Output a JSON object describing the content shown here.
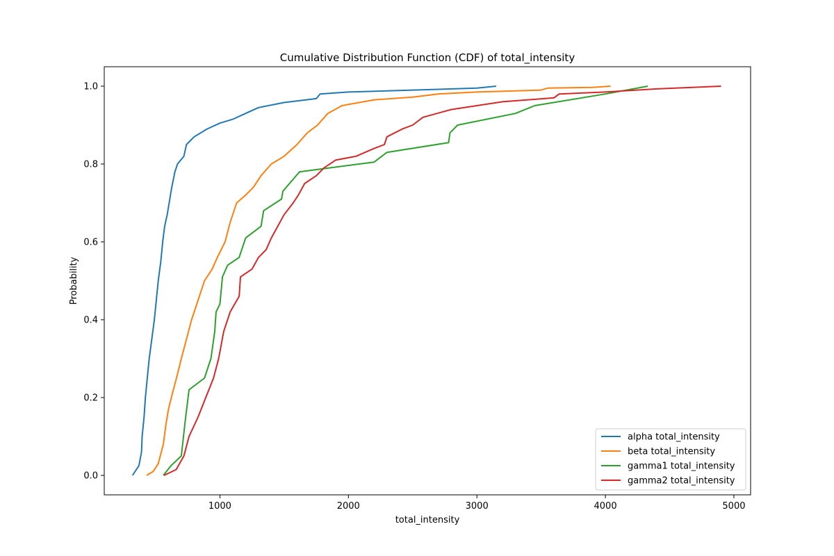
{
  "chart_data": {
    "type": "line",
    "title": "Cumulative Distribution Function (CDF) of total_intensity",
    "xlabel": "total_intensity",
    "ylabel": "Probability",
    "xlim": [
      100,
      5130
    ],
    "ylim": [
      -0.05,
      1.05
    ],
    "x_ticks": [
      1000,
      2000,
      3000,
      4000,
      5000
    ],
    "x_tick_labels": [
      "1000",
      "2000",
      "3000",
      "4000",
      "5000"
    ],
    "y_ticks": [
      0.0,
      0.2,
      0.4,
      0.6,
      0.8,
      1.0
    ],
    "y_tick_labels": [
      "0.0",
      "0.2",
      "0.4",
      "0.6",
      "0.8",
      "1.0"
    ],
    "grid": false,
    "legend_position": "lower-right",
    "series": [
      {
        "name": "alpha total_intensity",
        "color": "#1f77b4",
        "points": [
          [
            320,
            0.0
          ],
          [
            350,
            0.015
          ],
          [
            370,
            0.025
          ],
          [
            390,
            0.06
          ],
          [
            395,
            0.1
          ],
          [
            410,
            0.15
          ],
          [
            420,
            0.2
          ],
          [
            435,
            0.25
          ],
          [
            450,
            0.3
          ],
          [
            470,
            0.35
          ],
          [
            490,
            0.4
          ],
          [
            505,
            0.45
          ],
          [
            520,
            0.5
          ],
          [
            540,
            0.55
          ],
          [
            555,
            0.6
          ],
          [
            570,
            0.64
          ],
          [
            590,
            0.67
          ],
          [
            605,
            0.7
          ],
          [
            625,
            0.74
          ],
          [
            650,
            0.78
          ],
          [
            670,
            0.8
          ],
          [
            720,
            0.82
          ],
          [
            740,
            0.85
          ],
          [
            800,
            0.87
          ],
          [
            900,
            0.89
          ],
          [
            1000,
            0.905
          ],
          [
            1100,
            0.915
          ],
          [
            1200,
            0.93
          ],
          [
            1300,
            0.945
          ],
          [
            1500,
            0.958
          ],
          [
            1750,
            0.968
          ],
          [
            1780,
            0.98
          ],
          [
            2000,
            0.985
          ],
          [
            2500,
            0.99
          ],
          [
            3000,
            0.995
          ],
          [
            3150,
            1.0
          ]
        ]
      },
      {
        "name": "beta total_intensity",
        "color": "#ff7f0e",
        "points": [
          [
            430,
            0.0
          ],
          [
            480,
            0.01
          ],
          [
            520,
            0.03
          ],
          [
            560,
            0.08
          ],
          [
            580,
            0.13
          ],
          [
            600,
            0.17
          ],
          [
            630,
            0.21
          ],
          [
            670,
            0.26
          ],
          [
            700,
            0.3
          ],
          [
            740,
            0.35
          ],
          [
            780,
            0.4
          ],
          [
            830,
            0.45
          ],
          [
            880,
            0.5
          ],
          [
            940,
            0.53
          ],
          [
            980,
            0.56
          ],
          [
            1040,
            0.6
          ],
          [
            1080,
            0.65
          ],
          [
            1130,
            0.7
          ],
          [
            1200,
            0.72
          ],
          [
            1260,
            0.74
          ],
          [
            1320,
            0.77
          ],
          [
            1400,
            0.8
          ],
          [
            1500,
            0.82
          ],
          [
            1600,
            0.85
          ],
          [
            1680,
            0.88
          ],
          [
            1760,
            0.9
          ],
          [
            1840,
            0.93
          ],
          [
            1950,
            0.95
          ],
          [
            2200,
            0.965
          ],
          [
            2500,
            0.972
          ],
          [
            2700,
            0.98
          ],
          [
            3000,
            0.985
          ],
          [
            3500,
            0.99
          ],
          [
            3550,
            0.995
          ],
          [
            3900,
            0.997
          ],
          [
            4040,
            1.0
          ]
        ]
      },
      {
        "name": "gamma1 total_intensity",
        "color": "#2ca02c",
        "points": [
          [
            560,
            0.0
          ],
          [
            620,
            0.025
          ],
          [
            700,
            0.05
          ],
          [
            730,
            0.14
          ],
          [
            760,
            0.22
          ],
          [
            880,
            0.25
          ],
          [
            930,
            0.3
          ],
          [
            960,
            0.37
          ],
          [
            970,
            0.42
          ],
          [
            1000,
            0.44
          ],
          [
            1020,
            0.51
          ],
          [
            1060,
            0.54
          ],
          [
            1150,
            0.56
          ],
          [
            1200,
            0.61
          ],
          [
            1320,
            0.64
          ],
          [
            1340,
            0.68
          ],
          [
            1480,
            0.71
          ],
          [
            1490,
            0.73
          ],
          [
            1620,
            0.78
          ],
          [
            2200,
            0.805
          ],
          [
            2300,
            0.83
          ],
          [
            2780,
            0.855
          ],
          [
            2790,
            0.88
          ],
          [
            2850,
            0.9
          ],
          [
            3300,
            0.93
          ],
          [
            3450,
            0.95
          ],
          [
            4000,
            0.98
          ],
          [
            4330,
            1.0
          ]
        ]
      },
      {
        "name": "gamma2 total_intensity",
        "color": "#d62728",
        "points": [
          [
            565,
            0.0
          ],
          [
            660,
            0.015
          ],
          [
            720,
            0.05
          ],
          [
            760,
            0.1
          ],
          [
            830,
            0.15
          ],
          [
            890,
            0.2
          ],
          [
            950,
            0.25
          ],
          [
            990,
            0.3
          ],
          [
            1030,
            0.37
          ],
          [
            1080,
            0.42
          ],
          [
            1150,
            0.46
          ],
          [
            1160,
            0.51
          ],
          [
            1250,
            0.53
          ],
          [
            1300,
            0.56
          ],
          [
            1360,
            0.58
          ],
          [
            1400,
            0.61
          ],
          [
            1450,
            0.64
          ],
          [
            1500,
            0.67
          ],
          [
            1570,
            0.7
          ],
          [
            1610,
            0.72
          ],
          [
            1660,
            0.75
          ],
          [
            1750,
            0.77
          ],
          [
            1810,
            0.79
          ],
          [
            1900,
            0.81
          ],
          [
            2060,
            0.82
          ],
          [
            2200,
            0.84
          ],
          [
            2280,
            0.85
          ],
          [
            2300,
            0.87
          ],
          [
            2420,
            0.89
          ],
          [
            2500,
            0.9
          ],
          [
            2580,
            0.92
          ],
          [
            2800,
            0.94
          ],
          [
            3000,
            0.95
          ],
          [
            3200,
            0.96
          ],
          [
            3600,
            0.97
          ],
          [
            3640,
            0.98
          ],
          [
            4000,
            0.985
          ],
          [
            4400,
            0.993
          ],
          [
            4900,
            1.0
          ]
        ]
      }
    ]
  }
}
